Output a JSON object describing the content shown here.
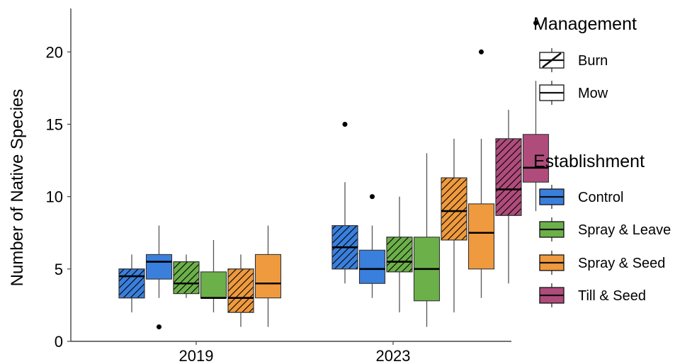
{
  "chart_data": {
    "type": "boxplot",
    "title": "",
    "xlabel": "",
    "ylabel": "Number of Native Species",
    "ylim": [
      0,
      23
    ],
    "yticks": [
      0,
      5,
      10,
      15,
      20
    ],
    "categories": [
      "2019",
      "2023"
    ],
    "grid": false,
    "legend_position": "right",
    "legends": [
      {
        "title": "Management",
        "entries": [
          {
            "label": "Burn",
            "pattern": "hatched"
          },
          {
            "label": "Mow",
            "pattern": "solid"
          }
        ]
      },
      {
        "title": "Establishment",
        "entries": [
          {
            "label": "Control",
            "color": "#3a7fdc"
          },
          {
            "label": "Spray & Leave",
            "color": "#6cb04a"
          },
          {
            "label": "Spray & Seed",
            "color": "#ef9a3e"
          },
          {
            "label": "Till & Seed",
            "color": "#b04c7c"
          }
        ]
      }
    ],
    "boxes": [
      {
        "year": "2019",
        "establishment": "Control",
        "management": "Burn",
        "min": 2,
        "q1": 3,
        "median": 4.5,
        "q3": 5,
        "max": 6,
        "outliers": []
      },
      {
        "year": "2019",
        "establishment": "Control",
        "management": "Mow",
        "min": 3,
        "q1": 4.3,
        "median": 5.5,
        "q3": 6,
        "max": 8,
        "outliers": [
          1
        ]
      },
      {
        "year": "2019",
        "establishment": "Spray & Leave",
        "management": "Burn",
        "min": 3,
        "q1": 3.3,
        "median": 4,
        "q3": 5.5,
        "max": 6,
        "outliers": []
      },
      {
        "year": "2019",
        "establishment": "Spray & Leave",
        "management": "Mow",
        "min": 2,
        "q1": 3,
        "median": 3,
        "q3": 4.8,
        "max": 7,
        "outliers": []
      },
      {
        "year": "2019",
        "establishment": "Spray & Seed",
        "management": "Burn",
        "min": 1,
        "q1": 2,
        "median": 3,
        "q3": 5,
        "max": 6,
        "outliers": []
      },
      {
        "year": "2019",
        "establishment": "Spray & Seed",
        "management": "Mow",
        "min": 1,
        "q1": 3,
        "median": 4,
        "q3": 6,
        "max": 8,
        "outliers": []
      },
      {
        "year": "2023",
        "establishment": "Control",
        "management": "Burn",
        "min": 4,
        "q1": 5,
        "median": 6.5,
        "q3": 8,
        "max": 11,
        "outliers": [
          15
        ]
      },
      {
        "year": "2023",
        "establishment": "Control",
        "management": "Mow",
        "min": 3,
        "q1": 4,
        "median": 5,
        "q3": 6.3,
        "max": 8,
        "outliers": [
          10
        ]
      },
      {
        "year": "2023",
        "establishment": "Spray & Leave",
        "management": "Burn",
        "min": 2,
        "q1": 4.8,
        "median": 5.5,
        "q3": 7.2,
        "max": 10,
        "outliers": []
      },
      {
        "year": "2023",
        "establishment": "Spray & Leave",
        "management": "Mow",
        "min": 1,
        "q1": 2.8,
        "median": 5,
        "q3": 7.2,
        "max": 13,
        "outliers": []
      },
      {
        "year": "2023",
        "establishment": "Spray & Seed",
        "management": "Burn",
        "min": 2,
        "q1": 7,
        "median": 9,
        "q3": 11.3,
        "max": 14,
        "outliers": []
      },
      {
        "year": "2023",
        "establishment": "Spray & Seed",
        "management": "Mow",
        "min": 3,
        "q1": 5,
        "median": 7.5,
        "q3": 9.5,
        "max": 14,
        "outliers": [
          20
        ]
      },
      {
        "year": "2023",
        "establishment": "Till & Seed",
        "management": "Burn",
        "min": 4,
        "q1": 8.7,
        "median": 10.5,
        "q3": 14,
        "max": 16,
        "outliers": []
      },
      {
        "year": "2023",
        "establishment": "Till & Seed",
        "management": "Mow",
        "min": 9,
        "q1": 11,
        "median": 12,
        "q3": 14.3,
        "max": 18,
        "outliers": [
          22
        ]
      }
    ]
  }
}
